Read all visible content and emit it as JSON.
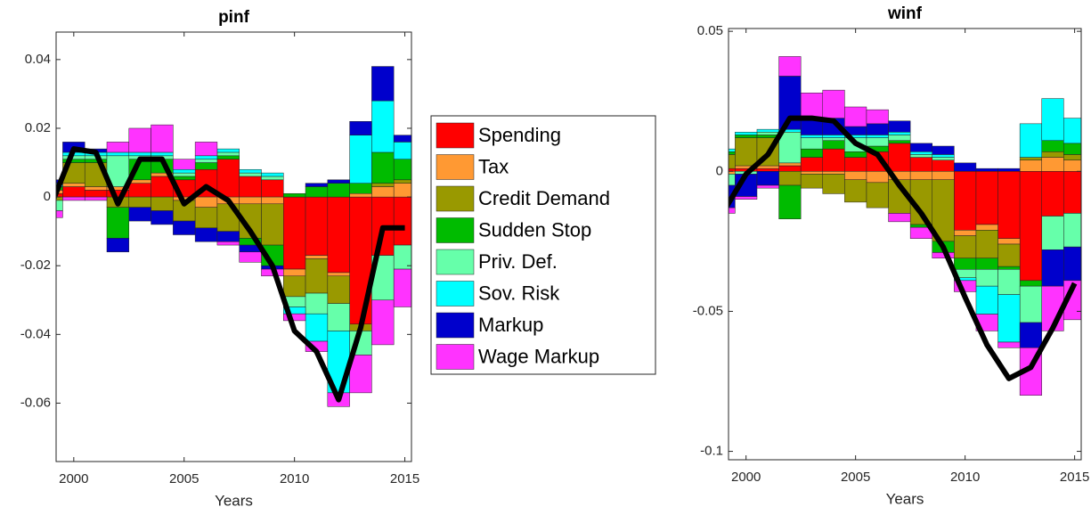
{
  "chart_data": [
    {
      "type": "bar",
      "title": "pinf",
      "x_label": "Years",
      "x": [
        1999,
        2000,
        2001,
        2002,
        2003,
        2004,
        2005,
        2006,
        2007,
        2008,
        2009,
        2010,
        2011,
        2012,
        2013,
        2014,
        2015
      ],
      "xlim": [
        1999.2,
        2015.3
      ],
      "xticks": [
        2000,
        2005,
        2010,
        2015
      ],
      "ylim": [
        -0.077,
        0.048
      ],
      "yticks": [
        -0.06,
        -0.04,
        -0.02,
        0,
        0.02,
        0.04
      ],
      "stacked": true,
      "grid": false,
      "line_color": "#000000",
      "line_values": [
        -0.002,
        0.014,
        0.013,
        -0.002,
        0.011,
        0.011,
        -0.002,
        0.003,
        -0.001,
        -0.01,
        -0.02,
        -0.039,
        -0.045,
        -0.059,
        -0.038,
        -0.009,
        -0.009
      ],
      "series": [
        {
          "name": "Spending",
          "color": "#ff0000",
          "values": [
            0.001,
            0.003,
            0.002,
            0.002,
            0.004,
            0.006,
            0.005,
            0.008,
            0.011,
            0.006,
            0.005,
            -0.021,
            -0.017,
            -0.022,
            -0.037,
            -0.017,
            -0.014
          ]
        },
        {
          "name": "Tax",
          "color": "#ff9933",
          "values": [
            0.001,
            0.001,
            0.001,
            0.001,
            0.001,
            0.001,
            -0.001,
            -0.003,
            -0.002,
            -0.002,
            -0.002,
            -0.002,
            -0.001,
            -0.001,
            0.001,
            0.003,
            0.004
          ]
        },
        {
          "name": "Credit Demand",
          "color": "#999900",
          "values": [
            -0.001,
            0.006,
            0.007,
            -0.003,
            -0.003,
            -0.004,
            -0.006,
            -0.006,
            -0.008,
            -0.01,
            -0.012,
            -0.006,
            -0.01,
            -0.008,
            -0.002,
            0.001,
            0.001
          ]
        },
        {
          "name": "Sudden Stop",
          "color": "#00bb00",
          "values": [
            0.001,
            0.001,
            0.001,
            -0.009,
            0.006,
            0.004,
            0.001,
            0.002,
            0.001,
            -0.002,
            -0.006,
            0.001,
            0.003,
            0.004,
            0.003,
            0.009,
            0.006
          ]
        },
        {
          "name": "Priv. Def.",
          "color": "#66ffaa",
          "values": [
            -0.003,
            0.001,
            0.001,
            0.009,
            0.001,
            0.001,
            0.001,
            0.001,
            0.001,
            0.001,
            0.001,
            -0.003,
            -0.006,
            -0.008,
            -0.007,
            -0.013,
            -0.007
          ]
        },
        {
          "name": "Sov. Risk",
          "color": "#00ffff",
          "values": [
            0.001,
            0.001,
            0.001,
            0.001,
            0.001,
            0.001,
            0.001,
            0.001,
            0.001,
            0.001,
            0.001,
            -0.002,
            -0.008,
            -0.018,
            0.014,
            0.015,
            0.005
          ]
        },
        {
          "name": "Markup",
          "color": "#0000cc",
          "values": [
            0.001,
            0.003,
            0.001,
            -0.004,
            -0.004,
            -0.004,
            -0.004,
            -0.004,
            -0.003,
            -0.002,
            -0.001,
            0,
            0.001,
            0.001,
            0.004,
            0.01,
            0.002
          ]
        },
        {
          "name": "Wage Markup",
          "color": "#ff33ff",
          "values": [
            -0.002,
            -0.001,
            -0.001,
            0.003,
            0.007,
            0.008,
            0.003,
            0.004,
            -0.001,
            -0.003,
            -0.002,
            -0.002,
            -0.003,
            -0.004,
            -0.011,
            -0.013,
            -0.011
          ]
        }
      ]
    },
    {
      "type": "bar",
      "title": "winf",
      "x_label": "Years",
      "x": [
        1999,
        2000,
        2001,
        2002,
        2003,
        2004,
        2005,
        2006,
        2007,
        2008,
        2009,
        2010,
        2011,
        2012,
        2013,
        2014,
        2015
      ],
      "xlim": [
        1999.2,
        2015.3
      ],
      "xticks": [
        2000,
        2005,
        2010,
        2015
      ],
      "ylim": [
        -0.103,
        0.051
      ],
      "yticks": [
        -0.1,
        -0.05,
        0,
        0.05
      ],
      "stacked": true,
      "grid": false,
      "line_color": "#000000",
      "line_values": [
        -0.014,
        -0.001,
        0.006,
        0.019,
        0.019,
        0.018,
        0.01,
        0.006,
        -0.005,
        -0.015,
        -0.027,
        -0.045,
        -0.062,
        -0.074,
        -0.07,
        -0.056,
        -0.04
      ],
      "series": [
        {
          "values": [
            0.001,
            0.001,
            0.001,
            0.002,
            0.005,
            0.008,
            0.005,
            0.007,
            0.01,
            0.005,
            0.004,
            -0.021,
            -0.019,
            -0.024,
            -0.039,
            -0.016,
            -0.015
          ]
        },
        {
          "values": [
            -0.001,
            0.001,
            0.001,
            0.001,
            -0.001,
            -0.001,
            -0.003,
            -0.004,
            -0.003,
            -0.003,
            -0.003,
            -0.002,
            -0.002,
            -0.002,
            0.004,
            0.005,
            0.004
          ]
        },
        {
          "values": [
            0.005,
            0.01,
            0.01,
            -0.005,
            -0.005,
            -0.007,
            -0.008,
            -0.009,
            -0.012,
            -0.016,
            -0.022,
            -0.008,
            -0.01,
            -0.008,
            0.001,
            0.002,
            0.002
          ]
        },
        {
          "values": [
            0.001,
            0.001,
            0.001,
            -0.012,
            0.003,
            0.003,
            0.002,
            0.002,
            0.001,
            -0.001,
            -0.004,
            -0.004,
            -0.004,
            -0.001,
            -0.002,
            0.004,
            0.004
          ]
        },
        {
          "values": [
            -0.004,
            -0.001,
            0.001,
            0.011,
            0.004,
            0.001,
            0.005,
            0.003,
            0.002,
            0.001,
            0.001,
            -0.003,
            -0.006,
            -0.009,
            -0.013,
            -0.012,
            -0.012
          ]
        },
        {
          "values": [
            0.001,
            0.001,
            0.001,
            0.001,
            0.001,
            0.001,
            0.001,
            0.001,
            0.001,
            0.001,
            0.001,
            -0.001,
            -0.01,
            -0.017,
            0.012,
            0.015,
            0.009
          ]
        },
        {
          "values": [
            -0.008,
            -0.008,
            -0.005,
            0.019,
            0.006,
            0.006,
            0.003,
            0.004,
            0.004,
            0.003,
            0.003,
            0.003,
            0.001,
            0.001,
            -0.009,
            -0.013,
            -0.012
          ]
        },
        {
          "values": [
            -0.002,
            -0.001,
            -0.001,
            0.007,
            0.009,
            0.01,
            0.007,
            0.005,
            -0.003,
            -0.004,
            -0.002,
            -0.004,
            -0.006,
            -0.002,
            -0.017,
            -0.016,
            -0.014
          ]
        }
      ]
    }
  ]
}
